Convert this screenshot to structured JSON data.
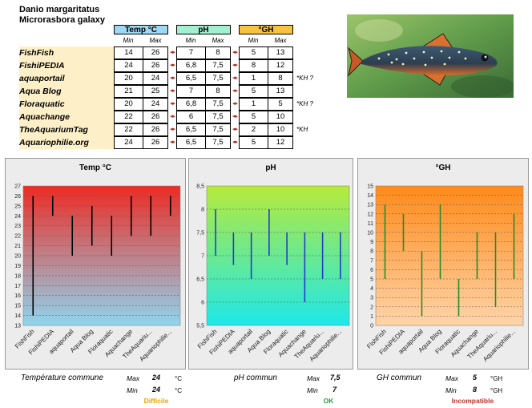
{
  "species": {
    "name": "Danio margaritatus",
    "synonym": "Microrasbora galaxy"
  },
  "table": {
    "headers": {
      "temp": "Temp °C",
      "ph": "pH",
      "gh": "°GH"
    },
    "min_label": "Min",
    "max_label": "Max",
    "rows": [
      {
        "source": "FishFish",
        "temp_min": "14",
        "temp_max": "26",
        "ph_min": "7",
        "ph_max": "8",
        "gh_min": "5",
        "gh_max": "13",
        "note": ""
      },
      {
        "source": "FishiPEDIA",
        "temp_min": "24",
        "temp_max": "26",
        "ph_min": "6,8",
        "ph_max": "7,5",
        "gh_min": "8",
        "gh_max": "12",
        "note": ""
      },
      {
        "source": "aquaportail",
        "temp_min": "20",
        "temp_max": "24",
        "ph_min": "6,5",
        "ph_max": "7,5",
        "gh_min": "1",
        "gh_max": "8",
        "note": "*KH ?"
      },
      {
        "source": "Aqua Blog",
        "temp_min": "21",
        "temp_max": "25",
        "ph_min": "7",
        "ph_max": "8",
        "gh_min": "5",
        "gh_max": "13",
        "note": ""
      },
      {
        "source": "Floraquatic",
        "temp_min": "20",
        "temp_max": "24",
        "ph_min": "6,8",
        "ph_max": "7,5",
        "gh_min": "1",
        "gh_max": "5",
        "note": "*KH ?"
      },
      {
        "source": "Aquachange",
        "temp_min": "22",
        "temp_max": "26",
        "ph_min": "6",
        "ph_max": "7,5",
        "gh_min": "5",
        "gh_max": "10",
        "note": ""
      },
      {
        "source": "TheAquariumTag",
        "temp_min": "22",
        "temp_max": "26",
        "ph_min": "6,5",
        "ph_max": "7,5",
        "gh_min": "2",
        "gh_max": "10",
        "note": "*KH"
      },
      {
        "source": "Aquariophilie.org",
        "temp_min": "24",
        "temp_max": "26",
        "ph_min": "6,5",
        "ph_max": "7,5",
        "gh_min": "5",
        "gh_max": "12",
        "note": ""
      }
    ]
  },
  "chart_data": [
    {
      "type": "bar",
      "title": "Temp °C",
      "categories": [
        "FishFish",
        "FishiPEDIA",
        "aquaportail",
        "Aqua Blog",
        "Floraquatic",
        "Aquachange",
        "TheAquariu...",
        "Aquariophilie..."
      ],
      "series": [
        {
          "values_min": [
            14,
            24,
            20,
            21,
            20,
            22,
            22,
            24
          ],
          "values_max": [
            26,
            26,
            24,
            25,
            24,
            26,
            26,
            26
          ]
        }
      ],
      "ylim": [
        13,
        27
      ],
      "yticks": [
        "13",
        "14",
        "15",
        "16",
        "17",
        "18",
        "19",
        "20",
        "21",
        "22",
        "23",
        "24",
        "25",
        "26",
        "27"
      ],
      "bar_color": "#000000",
      "gradient": [
        "#ee2b24",
        "#8fd5ee"
      ],
      "grid": true
    },
    {
      "type": "bar",
      "title": "pH",
      "categories": [
        "FishFish",
        "FishiPEDIA",
        "aquaportail",
        "Aqua Blog",
        "Floraquatic",
        "Aquachange",
        "TheAquariu...",
        "Aquariophilie..."
      ],
      "series": [
        {
          "values_min": [
            7,
            6.8,
            6.5,
            7,
            6.8,
            6,
            6.5,
            6.5
          ],
          "values_max": [
            8,
            7.5,
            7.5,
            8,
            7.5,
            7.5,
            7.5,
            7.5
          ]
        }
      ],
      "ylim": [
        5.5,
        8.5
      ],
      "yticks": [
        "5,5",
        "6",
        "6,5",
        "7",
        "7,5",
        "8",
        "8,5"
      ],
      "bar_color": "#2040c0",
      "gradient": [
        "#b7ea3a",
        "#1de8e8"
      ],
      "grid": true
    },
    {
      "type": "bar",
      "title": "°GH",
      "categories": [
        "FishFish",
        "FishiPEDIA",
        "aquaportail",
        "Aqua Blog",
        "Floraquatic",
        "Aquachange",
        "TheAquariu...",
        "Aquariophilie..."
      ],
      "series": [
        {
          "values_min": [
            5,
            8,
            1,
            5,
            1,
            5,
            2,
            5
          ],
          "values_max": [
            13,
            12,
            8,
            13,
            5,
            10,
            10,
            12
          ]
        }
      ],
      "ylim": [
        0,
        15
      ],
      "yticks": [
        "0",
        "1",
        "2",
        "3",
        "4",
        "5",
        "6",
        "7",
        "8",
        "9",
        "10",
        "11",
        "12",
        "13",
        "14",
        "15"
      ],
      "bar_color": "#2a8a2a",
      "gradient": [
        "#ff8a1a",
        "#ffd4a8"
      ],
      "grid": true
    }
  ],
  "summary": {
    "temp": {
      "label": "Température commune",
      "max_label": "Max",
      "max": "24",
      "min_label": "Min",
      "min": "24",
      "unit": "°C",
      "verdict": "Difficile",
      "verdict_color": "#e8a400"
    },
    "ph": {
      "label": "pH commun",
      "max_label": "Max",
      "max": "7,5",
      "min_label": "Min",
      "min": "7",
      "unit": "",
      "verdict": "OK",
      "verdict_color": "#2a9a3a"
    },
    "gh": {
      "label": "GH commun",
      "max_label": "Max",
      "max": "5",
      "min_label": "Min",
      "min": "8",
      "unit": "°GH",
      "verdict": "Incompatible",
      "verdict_color": "#c0302a"
    }
  }
}
